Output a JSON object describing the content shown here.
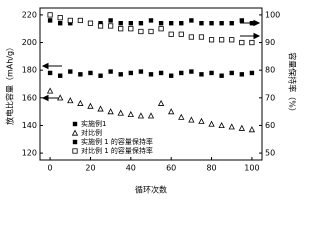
{
  "chart_data": {
    "type": "scatter",
    "x_label": "循环次数",
    "y_label": "放电比容量（mAh/g）",
    "y2_label": "容量保持率（%）",
    "x": [
      0,
      5,
      10,
      15,
      20,
      25,
      30,
      35,
      40,
      45,
      50,
      55,
      60,
      65,
      70,
      75,
      80,
      85,
      90,
      95,
      100
    ],
    "xlim": [
      -5,
      105
    ],
    "xticks": [
      0,
      20,
      40,
      60,
      80,
      100
    ],
    "ylim": [
      115,
      225
    ],
    "yticks": [
      120,
      140,
      160,
      180,
      200,
      220
    ],
    "y2lim": [
      47.5,
      102.5
    ],
    "y2ticks": [
      50,
      60,
      70,
      80,
      90,
      100
    ],
    "legend": "lower left",
    "series": [
      {
        "name": "实施例1",
        "color": "#000000",
        "marker": "square",
        "axis": "y",
        "values": [
          178,
          176,
          179,
          177,
          178,
          176,
          179,
          177,
          178,
          179,
          177,
          178,
          176,
          178,
          179,
          177,
          178,
          176,
          178,
          177,
          178
        ]
      },
      {
        "name": "对比例",
        "color": "#000000",
        "marker": "open-triangle",
        "axis": "y",
        "values": [
          165,
          160,
          158,
          156,
          154,
          152,
          150,
          149,
          148,
          147,
          147,
          156,
          150,
          146,
          144,
          143,
          141,
          140,
          139,
          138,
          137
        ]
      },
      {
        "name": "实施例 1 的容量保持率",
        "color": "#000000",
        "marker": "square",
        "axis": "y2",
        "values": [
          98,
          97,
          97,
          98,
          97,
          97,
          98,
          97,
          97,
          97,
          98,
          97,
          97,
          97,
          98,
          97,
          97,
          97,
          97,
          98,
          97
        ]
      },
      {
        "name": "对比例 1 的容量保持率",
        "color": "#000000",
        "marker": "open-square",
        "axis": "y2",
        "values": [
          100,
          99,
          98,
          98,
          97,
          96,
          96,
          95,
          95,
          94,
          94,
          95,
          93,
          93,
          92,
          92,
          91,
          91,
          91,
          90,
          90
        ]
      }
    ]
  }
}
